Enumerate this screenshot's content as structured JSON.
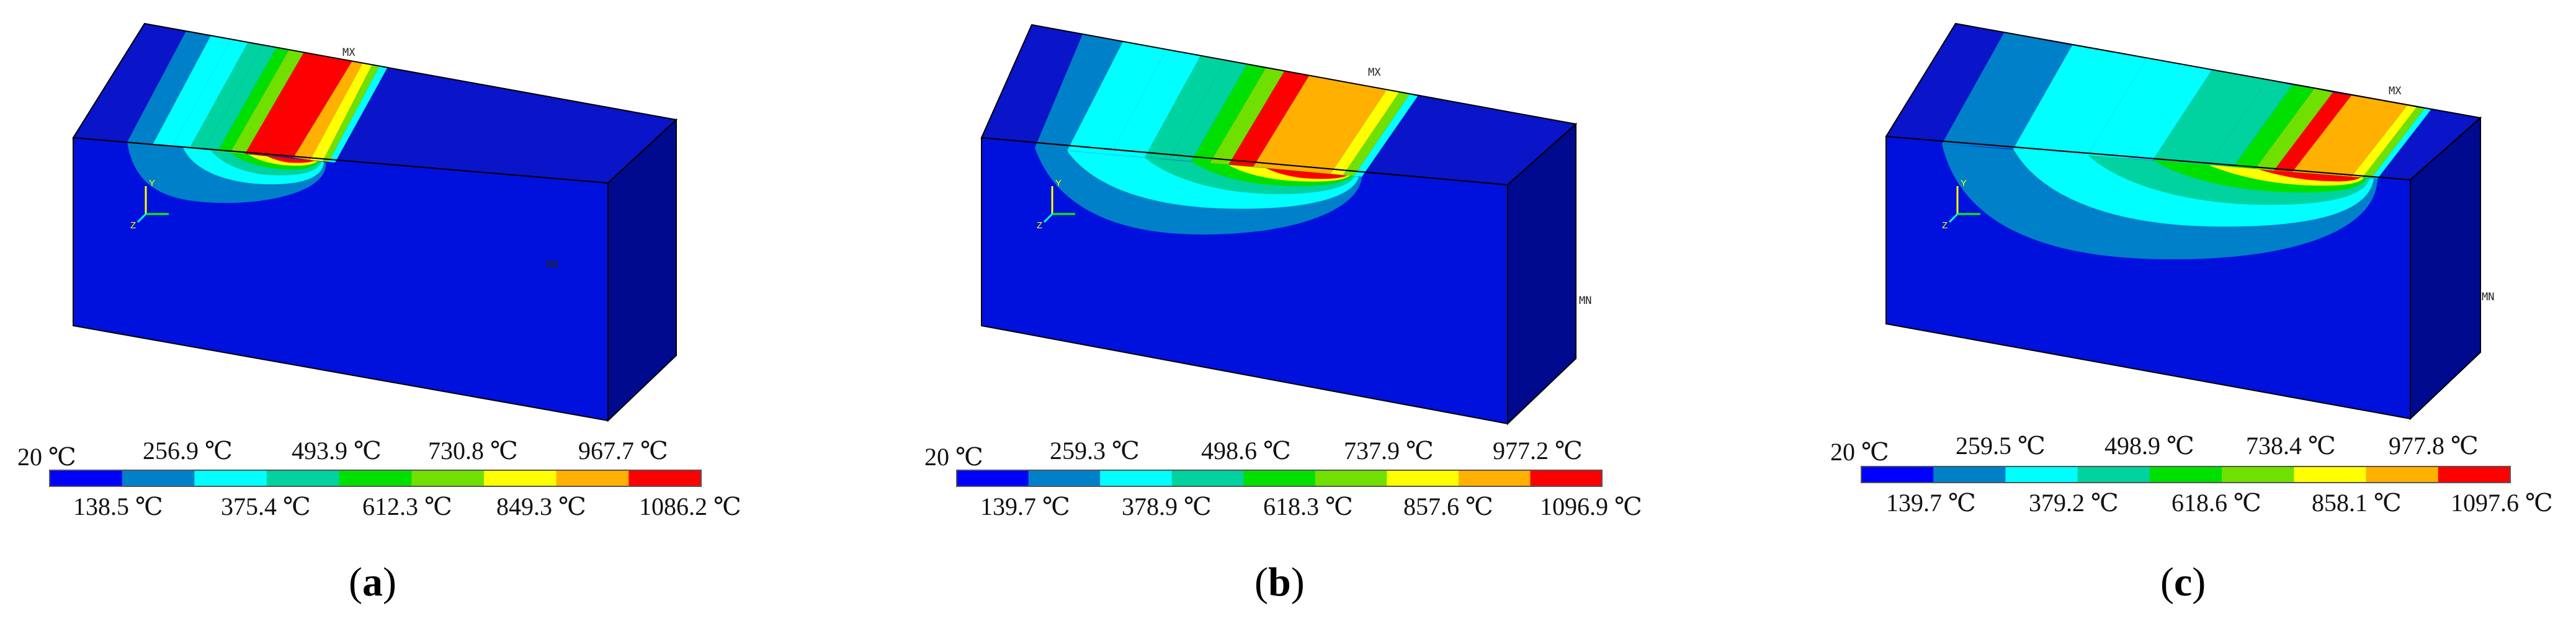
{
  "colors": {
    "bands": [
      "#0000ff",
      "#0080c8",
      "#00ffff",
      "#00d2a0",
      "#00e000",
      "#70e000",
      "#ffff00",
      "#ffb000",
      "#ff0000"
    ],
    "block_front": "#0011dd",
    "block_top": "#0a14c8",
    "block_right": "#000a8f",
    "block_edge": "#000000"
  },
  "panels": [
    {
      "caption_letter": "a",
      "tags": {
        "mx": "MX",
        "mn": "MN"
      },
      "legend": {
        "top_labels": [
          "20 ℃",
          "256.9 ℃",
          "493.9 ℃",
          "730.8 ℃",
          "967.7 ℃"
        ],
        "bottom_labels": [
          "138.5 ℃",
          "375.4 ℃",
          "612.3 ℃",
          "849.3 ℃",
          "1086.2 ℃"
        ]
      }
    },
    {
      "caption_letter": "b",
      "tags": {
        "mx": "MX",
        "mn": "MN"
      },
      "legend": {
        "top_labels": [
          "20 ℃",
          "259.3 ℃",
          "498.6 ℃",
          "737.9 ℃",
          "977.2 ℃"
        ],
        "bottom_labels": [
          "139.7 ℃",
          "378.9 ℃",
          "618.3 ℃",
          "857.6 ℃",
          "1096.9 ℃"
        ]
      }
    },
    {
      "caption_letter": "c",
      "tags": {
        "mx": "MX",
        "mn": "MN"
      },
      "legend": {
        "top_labels": [
          "20 ℃",
          "259.5 ℃",
          "498.9 ℃",
          "738.4 ℃",
          "977.8 ℃"
        ],
        "bottom_labels": [
          "139.7 ℃",
          "379.2 ℃",
          "618.6 ℃",
          "858.1 ℃",
          "1097.6 ℃"
        ]
      }
    }
  ]
}
